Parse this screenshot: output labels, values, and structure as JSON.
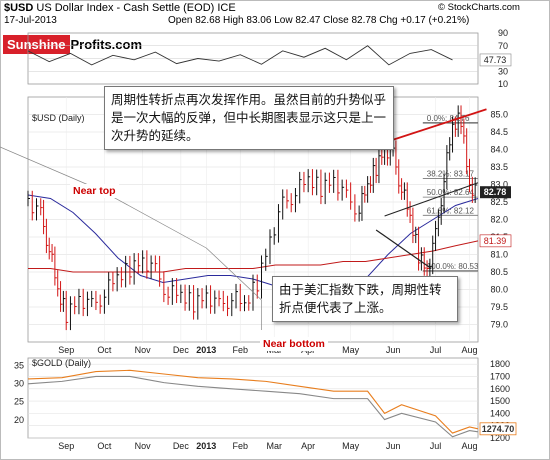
{
  "header": {
    "symbol": "$USD",
    "name": "US Dollar Index - Cash Settle (EOD) ICE",
    "date": "17-Jul-2013",
    "ohlc": "Open 82.68 High 83.06 Low 82.47 Close 82.78 Chg +0.17 (+0.21%)",
    "watermark": "© StockCharts.com"
  },
  "logo": {
    "part1": "Sunshine",
    "part2": "Profits.com"
  },
  "notes": {
    "top": "周期性转折点再次发挥作用。虽然目前的升势似乎是一次大幅的反弹，但中长期图表显示这只是上一次升势的延续。",
    "bottom": "由于美汇指数下跌，周期性转折点便代表了上涨。"
  },
  "callouts": {
    "near_top": "Near top",
    "near_bottom": "Near bottom"
  },
  "chart_data": [
    {
      "type": "line",
      "panel": "RSI",
      "ylim": [
        10,
        90
      ],
      "y_ticks": [
        "10",
        "30",
        "50",
        "70",
        "90"
      ],
      "value_label": "47.73",
      "x": [
        0,
        5,
        10,
        15,
        20,
        25,
        30,
        35,
        40,
        45,
        50,
        55,
        60,
        65,
        70,
        75,
        80,
        85,
        90,
        95,
        100
      ],
      "values": [
        62,
        45,
        58,
        40,
        55,
        48,
        60,
        42,
        50,
        46,
        56,
        41,
        62,
        52,
        66,
        48,
        70,
        40,
        58,
        64,
        47.73
      ]
    },
    {
      "type": "candlestick",
      "panel": "$USD (Daily)",
      "label": "$USD (Daily)",
      "ylim": [
        78.5,
        85.5
      ],
      "y_ticks": [
        "79.0",
        "79.5",
        "80.0",
        "80.5",
        "81.0",
        "81.5",
        "82.0",
        "82.5",
        "83.0",
        "83.5",
        "84.0",
        "84.5",
        "85.0"
      ],
      "x_labels": [
        "Sep",
        "Oct",
        "Nov",
        "Dec",
        "2013",
        "Feb",
        "Mar",
        "Apr",
        "May",
        "Jun",
        "Jul",
        "Aug"
      ],
      "close_label": "82.78",
      "ma_label": "81.39",
      "price_path": [
        {
          "x": 0,
          "y": 82.6
        },
        {
          "x": 3,
          "y": 82.1
        },
        {
          "x": 5,
          "y": 81.2
        },
        {
          "x": 7,
          "y": 79.9
        },
        {
          "x": 9,
          "y": 79.3
        },
        {
          "x": 12,
          "y": 79.8
        },
        {
          "x": 15,
          "y": 79.5
        },
        {
          "x": 18,
          "y": 79.9
        },
        {
          "x": 21,
          "y": 80.3
        },
        {
          "x": 24,
          "y": 80.6
        },
        {
          "x": 27,
          "y": 80.9
        },
        {
          "x": 30,
          "y": 80.5
        },
        {
          "x": 33,
          "y": 79.9
        },
        {
          "x": 36,
          "y": 79.8
        },
        {
          "x": 39,
          "y": 79.6
        },
        {
          "x": 42,
          "y": 79.9
        },
        {
          "x": 45,
          "y": 79.5
        },
        {
          "x": 48,
          "y": 79.8
        },
        {
          "x": 51,
          "y": 79.5
        },
        {
          "x": 54,
          "y": 80.2
        },
        {
          "x": 57,
          "y": 81.5
        },
        {
          "x": 60,
          "y": 82.4
        },
        {
          "x": 63,
          "y": 82.8
        },
        {
          "x": 66,
          "y": 83.1
        },
        {
          "x": 69,
          "y": 82.9
        },
        {
          "x": 72,
          "y": 83.2
        },
        {
          "x": 75,
          "y": 82.6
        },
        {
          "x": 78,
          "y": 82.3
        },
        {
          "x": 80,
          "y": 82.9
        },
        {
          "x": 82,
          "y": 83.5
        },
        {
          "x": 84,
          "y": 84.1
        },
        {
          "x": 86,
          "y": 83.8
        },
        {
          "x": 88,
          "y": 82.9
        },
        {
          "x": 90,
          "y": 82.0
        },
        {
          "x": 92,
          "y": 81.0
        },
        {
          "x": 94,
          "y": 80.6
        },
        {
          "x": 96,
          "y": 81.5
        },
        {
          "x": 98,
          "y": 83.2
        },
        {
          "x": 100,
          "y": 84.6
        },
        {
          "x": 102,
          "y": 84.9
        },
        {
          "x": 104,
          "y": 83.0
        },
        {
          "x": 106,
          "y": 82.8
        }
      ],
      "ma50": [
        82.7,
        82.6,
        82.2,
        81.6,
        80.9,
        80.4,
        80.2,
        80.3,
        80.4,
        80.4,
        80.3,
        80.1,
        79.9,
        79.9,
        80.0,
        80.3,
        81.0,
        81.6,
        82.0,
        82.4,
        82.6
      ],
      "ma200": [
        80.6,
        80.6,
        80.5,
        80.5,
        80.5,
        80.5,
        80.5,
        80.6,
        80.6,
        80.6,
        80.6,
        80.7,
        80.7,
        80.7,
        80.8,
        80.8,
        80.9,
        81.0,
        81.1,
        81.25,
        81.39
      ],
      "fib_levels": [
        {
          "pct": "0.0%",
          "value": "84.76",
          "y": 84.76
        },
        {
          "pct": "38.2%",
          "value": "83.17",
          "y": 83.17
        },
        {
          "pct": "50.0%",
          "value": "82.64",
          "y": 82.64
        },
        {
          "pct": "61.8%",
          "value": "82.12",
          "y": 82.12
        },
        {
          "pct": "100.0%",
          "value": "80.53",
          "y": 80.53
        }
      ]
    },
    {
      "type": "line",
      "panel": "$GOLD (Daily)",
      "label": "$GOLD (Daily)",
      "ylim_left": [
        15,
        37
      ],
      "ylim_right": [
        1200,
        1850
      ],
      "y_ticks_left": [
        "20",
        "25",
        "30",
        "35"
      ],
      "y_ticks_right": [
        "1200",
        "1300",
        "1400",
        "1500",
        "1600",
        "1700",
        "1800"
      ],
      "x_labels": [
        "Sep",
        "Oct",
        "Nov",
        "Dec",
        "2013",
        "Feb",
        "Mar",
        "Apr",
        "May",
        "Jun",
        "Jul",
        "Aug"
      ],
      "value_label": "1274.70",
      "series": [
        {
          "color": "#e87e1e",
          "x": [
            0,
            8,
            16,
            24,
            32,
            40,
            48,
            56,
            64,
            72,
            80,
            84,
            88,
            96,
            100,
            104,
            106
          ],
          "values": [
            1680,
            1690,
            1740,
            1750,
            1720,
            1690,
            1680,
            1660,
            1620,
            1580,
            1580,
            1400,
            1470,
            1380,
            1240,
            1290,
            1274.7
          ]
        },
        {
          "color": "#888888",
          "x": [
            0,
            8,
            16,
            24,
            32,
            40,
            48,
            56,
            64,
            72,
            80,
            84,
            88,
            96,
            100,
            104,
            106
          ],
          "values": [
            1640,
            1660,
            1700,
            1700,
            1650,
            1620,
            1600,
            1580,
            1560,
            1520,
            1520,
            1350,
            1400,
            1330,
            1210,
            1260,
            1250
          ]
        }
      ]
    }
  ],
  "colors": {
    "price_red": "#d21414",
    "price_green": "#111111",
    "ma50": "#2a2a9c",
    "ma200": "#c11a1a",
    "fib": "#777777",
    "trend_red": "#d21414"
  }
}
